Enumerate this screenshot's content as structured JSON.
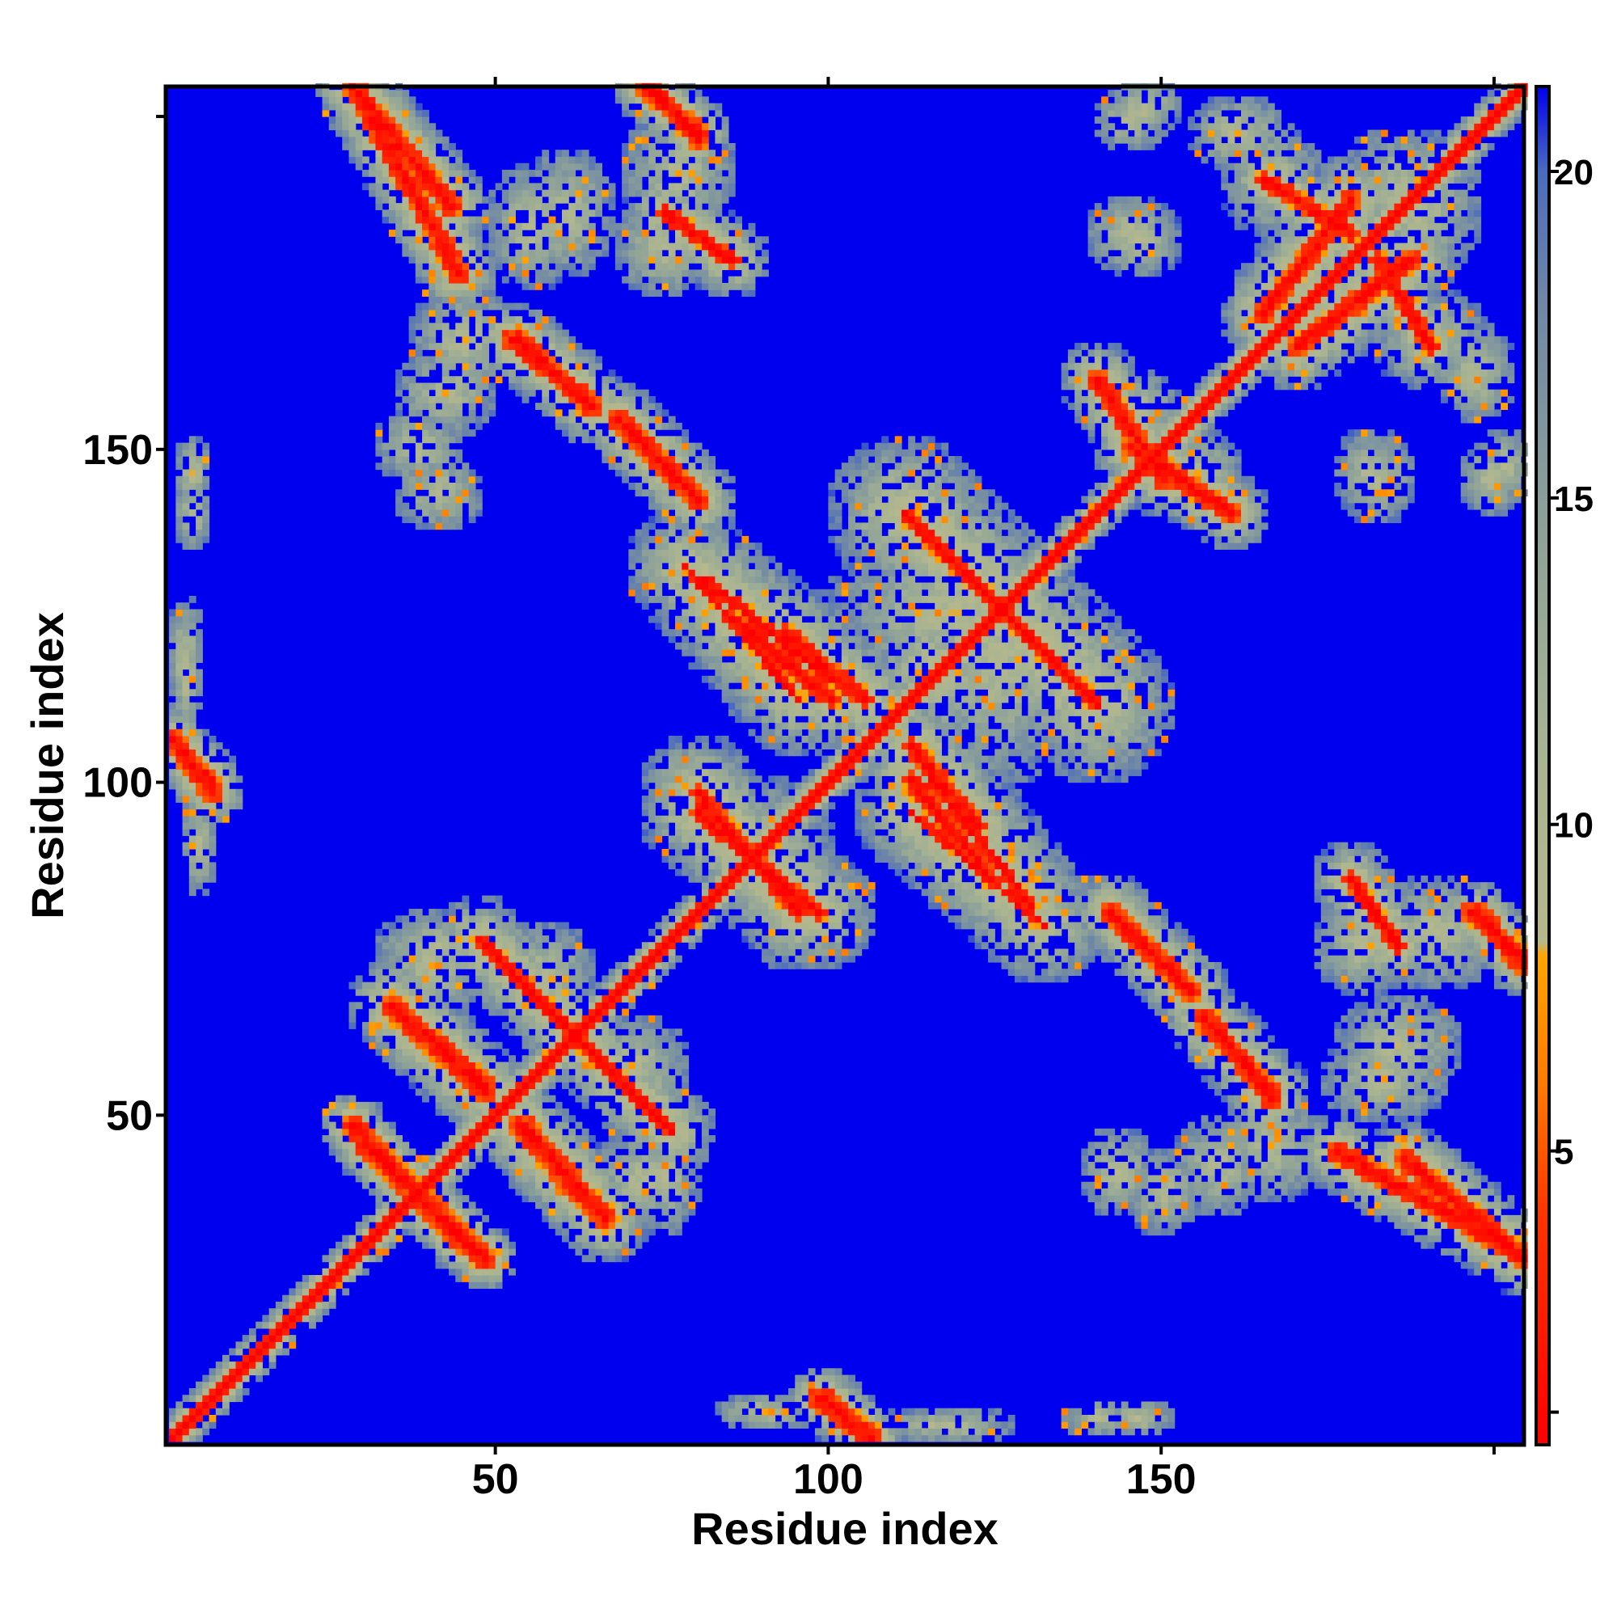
{
  "chart_data": {
    "type": "heatmap",
    "xlabel": "Residue index",
    "ylabel": "Residue index",
    "n_residues": 204,
    "xlim": [
      1,
      204
    ],
    "ylim": [
      1,
      204
    ],
    "x_ticks": [
      50,
      100,
      150
    ],
    "y_ticks": [
      50,
      100,
      150
    ],
    "colorbar": {
      "ticks": [
        5,
        10,
        15,
        20
      ],
      "range": [
        0.5,
        21.3
      ],
      "colors": [
        {
          "value": 0.5,
          "color": "#ff0000"
        },
        {
          "value": 4.0,
          "color": "#ff3300"
        },
        {
          "value": 6.0,
          "color": "#ff7a00"
        },
        {
          "value": 8.0,
          "color": "#ffa500"
        },
        {
          "value": 8.2,
          "color": "#b7b88c"
        },
        {
          "value": 11.0,
          "color": "#a9b491"
        },
        {
          "value": 15.0,
          "color": "#8a9f9a"
        },
        {
          "value": 18.0,
          "color": "#6f87a6"
        },
        {
          "value": 20.0,
          "color": "#4b6bbf"
        },
        {
          "value": 21.3,
          "color": "#0000ee"
        }
      ]
    },
    "background_color": "#0000ee",
    "contact_segments": [
      {
        "from": [
          1,
          1
        ],
        "to": [
          204,
          204
        ],
        "width": 3.2,
        "core": 1.1
      },
      {
        "from": [
          30,
          45
        ],
        "to": [
          48,
          28
        ],
        "width": 5,
        "core": 1.8
      },
      {
        "from": [
          35,
          65
        ],
        "to": [
          48,
          54
        ],
        "width": 6,
        "core": 1.6
      },
      {
        "from": [
          53,
          48
        ],
        "to": [
          66,
          34
        ],
        "width": 7,
        "core": 1.8
      },
      {
        "from": [
          59,
          64
        ],
        "to": [
          76,
          47
        ],
        "width": 7,
        "core": 0.9
      },
      {
        "from": [
          80,
          95
        ],
        "to": [
          98,
          80
        ],
        "width": 9,
        "core": 1.2
      },
      {
        "from": [
          93,
          122
        ],
        "to": [
          105,
          112
        ],
        "width": 8,
        "core": 1.3
      },
      {
        "from": [
          81,
          130
        ],
        "to": [
          100,
          115
        ],
        "width": 9,
        "core": 0.8
      },
      {
        "from": [
          111,
          140
        ],
        "to": [
          131,
          120
        ],
        "width": 12,
        "core": 0.8
      },
      {
        "from": [
          112,
          100
        ],
        "to": [
          124,
          85
        ],
        "width": 8,
        "core": 1.3
      },
      {
        "from": [
          112,
          95
        ],
        "to": [
          132,
          78
        ],
        "width": 9,
        "core": 0.6
      },
      {
        "from": [
          142,
          80
        ],
        "to": [
          152,
          70
        ],
        "width": 6,
        "core": 1.6
      },
      {
        "from": [
          156,
          64
        ],
        "to": [
          166,
          53
        ],
        "width": 6,
        "core": 1.6
      },
      {
        "from": [
          176,
          44
        ],
        "to": [
          201,
          30
        ],
        "width": 6,
        "core": 1.6
      },
      {
        "from": [
          196,
          80
        ],
        "to": [
          204,
          73
        ],
        "width": 4,
        "core": 1.5
      },
      {
        "from": [
          145,
          150
        ],
        "to": [
          160,
          140
        ],
        "width": 6,
        "core": 1.5
      },
      {
        "from": [
          170,
          165
        ],
        "to": [
          187,
          178
        ],
        "width": 7,
        "core": 1.5
      },
      {
        "from": [
          165,
          190
        ],
        "to": [
          178,
          182
        ],
        "width": 5,
        "core": 1.3
      },
      {
        "from": [
          28,
          204
        ],
        "to": [
          43,
          186
        ],
        "width": 6,
        "core": 1.6
      },
      {
        "from": [
          72,
          204
        ],
        "to": [
          80,
          197
        ],
        "width": 5,
        "core": 1.6
      },
      {
        "from": [
          75,
          185
        ],
        "to": [
          85,
          178
        ],
        "width": 6,
        "core": 1.2
      },
      {
        "from": [
          52,
          166
        ],
        "to": [
          62,
          158
        ],
        "width": 6,
        "core": 1.5
      },
      {
        "from": [
          68,
          154
        ],
        "to": [
          79,
          143
        ],
        "width": 6,
        "core": 1.5
      },
      {
        "from": [
          98,
          7
        ],
        "to": [
          106,
          1
        ],
        "width": 5,
        "core": 1.6
      },
      {
        "from": [
          1,
          106
        ],
        "to": [
          7,
          99
        ],
        "width": 5,
        "core": 1.6
      }
    ],
    "contact_blobs": [
      {
        "center": [
          40,
          72
        ],
        "radius": [
          8,
          9
        ]
      },
      {
        "center": [
          57,
          70
        ],
        "radius": [
          8,
          9
        ]
      },
      {
        "center": [
          75,
          40
        ],
        "radius": [
          5,
          9
        ]
      },
      {
        "center": [
          90,
          89
        ],
        "radius": [
          9,
          12
        ]
      },
      {
        "center": [
          118,
          125
        ],
        "radius": [
          20,
          12
        ]
      },
      {
        "center": [
          117,
          115
        ],
        "radius": [
          10,
          10
        ]
      },
      {
        "center": [
          143,
          41
        ],
        "radius": [
          6,
          7
        ]
      },
      {
        "center": [
          158,
          42
        ],
        "radius": [
          7,
          8
        ]
      },
      {
        "center": [
          180,
          75
        ],
        "radius": [
          8,
          8
        ]
      },
      {
        "center": [
          183,
          55
        ],
        "radius": [
          10,
          7
        ]
      },
      {
        "center": [
          146,
          155
        ],
        "radius": [
          7,
          7
        ]
      },
      {
        "center": [
          182,
          145
        ],
        "radius": [
          6,
          7
        ]
      },
      {
        "center": [
          201,
          147
        ],
        "radius": [
          5,
          6
        ]
      },
      {
        "center": [
          190,
          166
        ],
        "radius": [
          9,
          8
        ]
      },
      {
        "center": [
          188,
          186
        ],
        "radius": [
          10,
          12
        ]
      },
      {
        "center": [
          145,
          199
        ],
        "radius": [
          6,
          5
        ]
      },
      {
        "center": [
          161,
          197
        ],
        "radius": [
          8,
          6
        ]
      },
      {
        "center": [
          146,
          181
        ],
        "radius": [
          7,
          6
        ]
      },
      {
        "center": [
          45,
          166
        ],
        "radius": [
          9,
          8
        ]
      },
      {
        "center": [
          38,
          150
        ],
        "radius": [
          7,
          6
        ]
      },
      {
        "center": [
          60,
          185
        ],
        "radius": [
          8,
          10
        ]
      },
      {
        "center": [
          77,
          191
        ],
        "radius": [
          9,
          10
        ]
      },
      {
        "center": [
          4,
          146
        ],
        "radius": [
          3,
          6
        ]
      },
      {
        "center": [
          3,
          118
        ],
        "radius": [
          3,
          10
        ]
      },
      {
        "center": [
          5,
          90
        ],
        "radius": [
          3,
          8
        ]
      },
      {
        "center": [
          140,
          4
        ],
        "radius": [
          6,
          3
        ]
      },
      {
        "center": [
          115,
          3
        ],
        "radius": [
          12,
          2
        ]
      }
    ]
  }
}
